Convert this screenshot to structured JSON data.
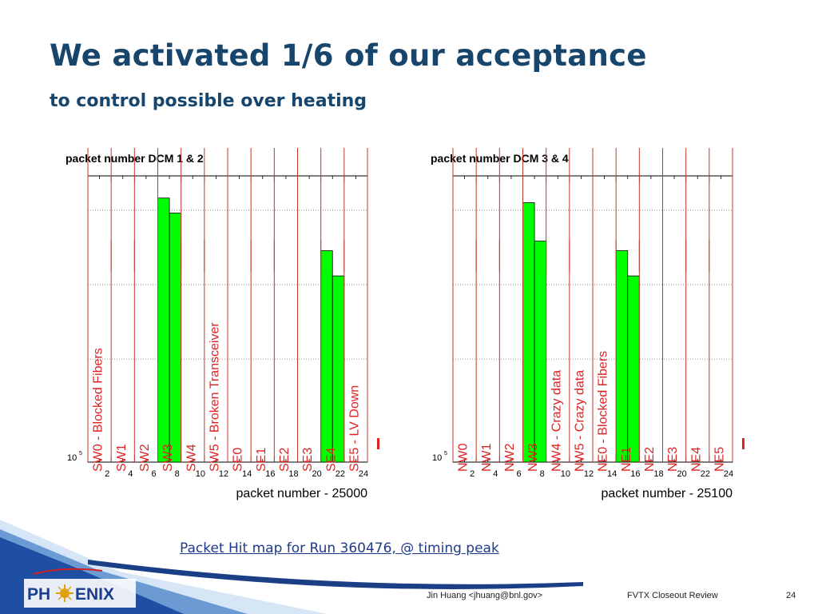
{
  "slide": {
    "title": "We activated 1/6 of our acceptance",
    "subtitle": "to control possible over heating",
    "caption": "Packet Hit map for Run 360476, @ timing peak "
  },
  "footer": {
    "logo_text_left": "PH",
    "logo_text_right": "ENIX",
    "author": "Jin Huang <jhuang@bnl.gov>",
    "event": "FVTX Closeout Review",
    "page_number": "24"
  },
  "colors": {
    "title": "#17456b",
    "bar_fill": "#00ff00",
    "divider": "#c0392b",
    "label": "#dd2222",
    "logo_blue": "#1a3d8f",
    "logo_red": "#d02020"
  },
  "chart_data": [
    {
      "type": "bar",
      "title": "packet number DCM 1 & 2",
      "xlabel": "packet number - 25000",
      "x_ticks": [
        "2",
        "4",
        "6",
        "8",
        "10",
        "12",
        "14",
        "16",
        "18",
        "20",
        "22",
        "24"
      ],
      "xlim": [
        0,
        24
      ],
      "log_scale_y": true,
      "y_tick_label": "10",
      "y_tick_exponent": "5",
      "grid": true,
      "bars": [
        {
          "bin": 7,
          "value": 7000000
        },
        {
          "bin": 8,
          "value": 5500000
        },
        {
          "bin": 21,
          "value": 3000000
        },
        {
          "bin": 22,
          "value": 2000000
        }
      ],
      "channels": [
        {
          "name": "SW0 - Blocked Fibers"
        },
        {
          "name": "SW1"
        },
        {
          "name": "SW2"
        },
        {
          "name": "SW3"
        },
        {
          "name": "SW4"
        },
        {
          "name": "SW5 - Broken Transceiver"
        },
        {
          "name": "SE0"
        },
        {
          "name": "SE1"
        },
        {
          "name": "SE2"
        },
        {
          "name": "SE3"
        },
        {
          "name": "SE4"
        },
        {
          "name": "SE5 - LV Down"
        }
      ]
    },
    {
      "type": "bar",
      "title": "packet number DCM 3 & 4",
      "xlabel": "packet number - 25100",
      "x_ticks": [
        "2",
        "4",
        "6",
        "8",
        "10",
        "12",
        "14",
        "16",
        "18",
        "20",
        "22",
        "24"
      ],
      "xlim": [
        0,
        24
      ],
      "log_scale_y": true,
      "y_tick_label": "10",
      "y_tick_exponent": "5",
      "grid": true,
      "bars": [
        {
          "bin": 7,
          "value": 6500000
        },
        {
          "bin": 8,
          "value": 3500000
        },
        {
          "bin": 15,
          "value": 3000000
        },
        {
          "bin": 16,
          "value": 2000000
        }
      ],
      "channels": [
        {
          "name": "NW0"
        },
        {
          "name": "NW1"
        },
        {
          "name": "NW2"
        },
        {
          "name": "NW3"
        },
        {
          "name": "NW4 - Crazy data"
        },
        {
          "name": "NW5 - Crazy data"
        },
        {
          "name": "NE0 - Blocked Fibers"
        },
        {
          "name": "NE1"
        },
        {
          "name": "NE2"
        },
        {
          "name": "NE3"
        },
        {
          "name": "NE4"
        },
        {
          "name": "NE5"
        }
      ]
    }
  ]
}
